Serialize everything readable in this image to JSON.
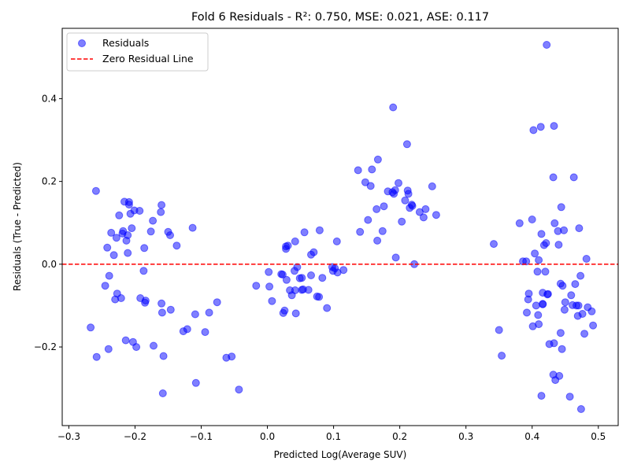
{
  "chart_data": {
    "type": "scatter",
    "title": "Fold 6 Residuals - R²: 0.750, MSE: 0.021, ASE: 0.117",
    "xlabel": "Predicted Log(Average SUV)",
    "ylabel": "Residuals (True - Predicted)",
    "xlim": [
      -0.31,
      0.53
    ],
    "ylim": [
      -0.39,
      0.57
    ],
    "x_ticks": [
      -0.3,
      -0.2,
      -0.1,
      0.0,
      0.1,
      0.2,
      0.3,
      0.4,
      0.5
    ],
    "x_tick_labels": [
      "−0.3",
      "−0.2",
      "−0.1",
      "0.0",
      "0.1",
      "0.2",
      "0.3",
      "0.4",
      "0.5"
    ],
    "y_ticks": [
      -0.2,
      0.0,
      0.2,
      0.4
    ],
    "y_tick_labels": [
      "−0.2",
      "0.0",
      "0.2",
      "0.4"
    ],
    "grid": false,
    "legend_position": "top-left",
    "legend": [
      {
        "label": "Residuals",
        "kind": "marker",
        "color": "#0000ff"
      },
      {
        "label": "Zero Residual Line",
        "kind": "dashed-line",
        "color": "#ff0000"
      }
    ],
    "reference_line": {
      "y": 0,
      "color": "#ff0000",
      "style": "dashed"
    },
    "marker_color": "#0000ff",
    "series": [
      {
        "name": "Residuals",
        "points": [
          [
            -0.267,
            -0.153
          ],
          [
            -0.259,
            0.177
          ],
          [
            -0.258,
            -0.224
          ],
          [
            -0.245,
            -0.052
          ],
          [
            -0.242,
            0.04
          ],
          [
            -0.24,
            -0.205
          ],
          [
            -0.239,
            -0.028
          ],
          [
            -0.236,
            0.076
          ],
          [
            -0.232,
            0.022
          ],
          [
            -0.23,
            -0.085
          ],
          [
            -0.228,
            0.064
          ],
          [
            -0.227,
            -0.071
          ],
          [
            -0.224,
            0.118
          ],
          [
            -0.221,
            -0.082
          ],
          [
            -0.219,
            0.074
          ],
          [
            -0.218,
            0.08
          ],
          [
            -0.216,
            0.151
          ],
          [
            -0.214,
            -0.184
          ],
          [
            -0.213,
            0.057
          ],
          [
            -0.211,
            0.07
          ],
          [
            -0.211,
            0.027
          ],
          [
            -0.209,
            0.15
          ],
          [
            -0.209,
            0.144
          ],
          [
            -0.207,
            0.122
          ],
          [
            -0.205,
            0.087
          ],
          [
            -0.203,
            -0.188
          ],
          [
            -0.201,
            0.13
          ],
          [
            -0.198,
            -0.2
          ],
          [
            -0.193,
            0.129
          ],
          [
            -0.192,
            -0.082
          ],
          [
            -0.187,
            -0.016
          ],
          [
            -0.186,
            0.039
          ],
          [
            -0.185,
            -0.093
          ],
          [
            -0.184,
            -0.088
          ],
          [
            -0.176,
            0.079
          ],
          [
            -0.173,
            0.105
          ],
          [
            -0.172,
            -0.197
          ],
          [
            -0.161,
            0.126
          ],
          [
            -0.16,
            0.143
          ],
          [
            -0.16,
            -0.095
          ],
          [
            -0.159,
            -0.117
          ],
          [
            -0.158,
            -0.312
          ],
          [
            -0.157,
            -0.222
          ],
          [
            -0.15,
            0.078
          ],
          [
            -0.147,
            0.07
          ],
          [
            -0.146,
            -0.11
          ],
          [
            -0.137,
            0.045
          ],
          [
            -0.127,
            -0.162
          ],
          [
            -0.121,
            -0.157
          ],
          [
            -0.113,
            0.088
          ],
          [
            -0.109,
            -0.121
          ],
          [
            -0.108,
            -0.287
          ],
          [
            -0.094,
            -0.164
          ],
          [
            -0.088,
            -0.117
          ],
          [
            -0.076,
            -0.092
          ],
          [
            -0.062,
            -0.226
          ],
          [
            -0.054,
            -0.223
          ],
          [
            -0.043,
            -0.303
          ],
          [
            -0.017,
            -0.052
          ],
          [
            0.002,
            -0.019
          ],
          [
            0.003,
            -0.054
          ],
          [
            0.007,
            -0.089
          ],
          [
            0.021,
            -0.024
          ],
          [
            0.023,
            -0.025
          ],
          [
            0.024,
            -0.118
          ],
          [
            0.026,
            -0.112
          ],
          [
            0.028,
            0.037
          ],
          [
            0.028,
            0.043
          ],
          [
            0.029,
            -0.038
          ],
          [
            0.031,
            0.045
          ],
          [
            0.034,
            -0.063
          ],
          [
            0.037,
            -0.075
          ],
          [
            0.041,
            -0.016
          ],
          [
            0.042,
            0.055
          ],
          [
            0.042,
            -0.063
          ],
          [
            0.043,
            -0.119
          ],
          [
            0.045,
            -0.007
          ],
          [
            0.049,
            -0.034
          ],
          [
            0.052,
            -0.033
          ],
          [
            0.052,
            -0.062
          ],
          [
            0.054,
            -0.061
          ],
          [
            0.056,
            0.077
          ],
          [
            0.062,
            -0.062
          ],
          [
            0.066,
            -0.027
          ],
          [
            0.066,
            0.023
          ],
          [
            0.07,
            0.029
          ],
          [
            0.075,
            -0.078
          ],
          [
            0.078,
            -0.079
          ],
          [
            0.079,
            0.082
          ],
          [
            0.083,
            -0.033
          ],
          [
            0.09,
            -0.106
          ],
          [
            0.098,
            -0.007
          ],
          [
            0.099,
            -0.016
          ],
          [
            0.102,
            -0.01
          ],
          [
            0.105,
            0.055
          ],
          [
            0.106,
            -0.02
          ],
          [
            0.115,
            -0.014
          ],
          [
            0.137,
            0.227
          ],
          [
            0.14,
            0.078
          ],
          [
            0.148,
            0.198
          ],
          [
            0.152,
            0.107
          ],
          [
            0.156,
            0.189
          ],
          [
            0.158,
            0.229
          ],
          [
            0.165,
            0.133
          ],
          [
            0.166,
            0.057
          ],
          [
            0.167,
            0.253
          ],
          [
            0.174,
            0.08
          ],
          [
            0.176,
            0.14
          ],
          [
            0.182,
            0.176
          ],
          [
            0.189,
            0.174
          ],
          [
            0.19,
            0.379
          ],
          [
            0.191,
            0.17
          ],
          [
            0.193,
            0.179
          ],
          [
            0.194,
            0.016
          ],
          [
            0.198,
            0.196
          ],
          [
            0.203,
            0.103
          ],
          [
            0.208,
            0.154
          ],
          [
            0.211,
            0.29
          ],
          [
            0.212,
            0.178
          ],
          [
            0.213,
            0.17
          ],
          [
            0.215,
            0.136
          ],
          [
            0.218,
            0.144
          ],
          [
            0.219,
            0.141
          ],
          [
            0.222,
            0.0
          ],
          [
            0.23,
            0.126
          ],
          [
            0.236,
            0.113
          ],
          [
            0.239,
            0.133
          ],
          [
            0.249,
            0.188
          ],
          [
            0.255,
            0.119
          ],
          [
            0.342,
            0.049
          ],
          [
            0.35,
            -0.159
          ],
          [
            0.354,
            -0.221
          ],
          [
            0.381,
            0.099
          ],
          [
            0.386,
            0.007
          ],
          [
            0.391,
            0.007
          ],
          [
            0.392,
            -0.117
          ],
          [
            0.394,
            -0.085
          ],
          [
            0.395,
            -0.071
          ],
          [
            0.4,
            0.108
          ],
          [
            0.401,
            -0.15
          ],
          [
            0.402,
            0.324
          ],
          [
            0.404,
            0.026
          ],
          [
            0.406,
            -0.1
          ],
          [
            0.408,
            -0.018
          ],
          [
            0.409,
            -0.123
          ],
          [
            0.41,
            -0.145
          ],
          [
            0.41,
            0.01
          ],
          [
            0.413,
            0.332
          ],
          [
            0.414,
            0.073
          ],
          [
            0.414,
            -0.318
          ],
          [
            0.416,
            -0.096
          ],
          [
            0.416,
            -0.097
          ],
          [
            0.416,
            -0.069
          ],
          [
            0.418,
            0.046
          ],
          [
            0.42,
            -0.018
          ],
          [
            0.421,
            0.051
          ],
          [
            0.422,
            0.53
          ],
          [
            0.423,
            -0.073
          ],
          [
            0.424,
            -0.072
          ],
          [
            0.426,
            -0.193
          ],
          [
            0.432,
            0.21
          ],
          [
            0.432,
            -0.267
          ],
          [
            0.433,
            0.334
          ],
          [
            0.433,
            -0.191
          ],
          [
            0.434,
            0.099
          ],
          [
            0.435,
            -0.28
          ],
          [
            0.439,
            0.08
          ],
          [
            0.44,
            0.047
          ],
          [
            0.441,
            -0.27
          ],
          [
            0.443,
            -0.166
          ],
          [
            0.443,
            -0.047
          ],
          [
            0.444,
            0.138
          ],
          [
            0.445,
            -0.205
          ],
          [
            0.446,
            -0.052
          ],
          [
            0.448,
            0.082
          ],
          [
            0.449,
            -0.11
          ],
          [
            0.45,
            -0.092
          ],
          [
            0.457,
            -0.32
          ],
          [
            0.459,
            -0.075
          ],
          [
            0.461,
            -0.099
          ],
          [
            0.463,
            0.21
          ],
          [
            0.465,
            -0.048
          ],
          [
            0.467,
            -0.1
          ],
          [
            0.469,
            -0.125
          ],
          [
            0.47,
            -0.1
          ],
          [
            0.471,
            0.087
          ],
          [
            0.473,
            -0.028
          ],
          [
            0.474,
            -0.35
          ],
          [
            0.476,
            -0.12
          ],
          [
            0.479,
            -0.168
          ],
          [
            0.482,
            0.013
          ],
          [
            0.484,
            -0.104
          ],
          [
            0.49,
            -0.114
          ],
          [
            0.492,
            -0.148
          ]
        ]
      }
    ]
  }
}
